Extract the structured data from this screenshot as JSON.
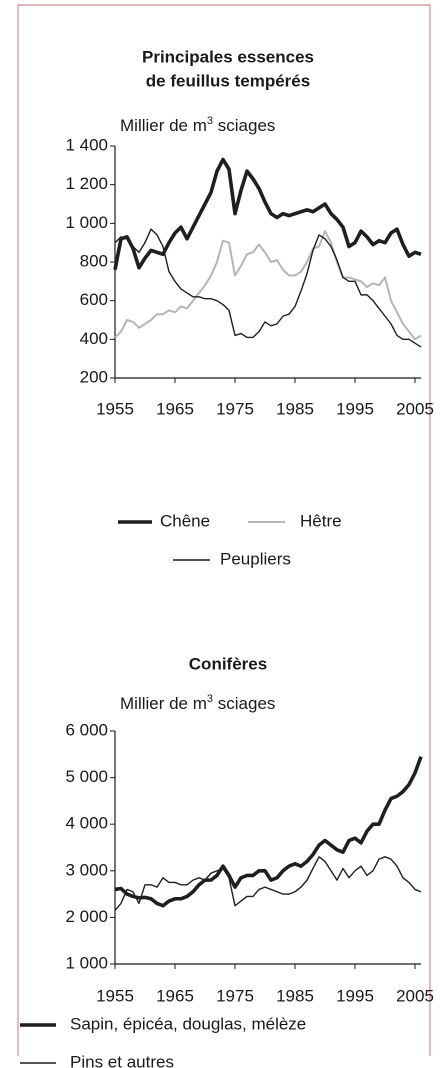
{
  "chart_data": [
    {
      "type": "line",
      "title": [
        "Principales essences",
        "de feuillus tempérés"
      ],
      "y_label": "Millier de m³ sciages",
      "x": [
        1955,
        1956,
        1957,
        1958,
        1959,
        1960,
        1961,
        1962,
        1963,
        1964,
        1965,
        1966,
        1967,
        1968,
        1969,
        1970,
        1971,
        1972,
        1973,
        1974,
        1975,
        1976,
        1977,
        1978,
        1979,
        1980,
        1981,
        1982,
        1983,
        1984,
        1985,
        1986,
        1987,
        1988,
        1989,
        1990,
        1991,
        1992,
        1993,
        1994,
        1995,
        1996,
        1997,
        1998,
        1999,
        2000,
        2001,
        2002,
        2003,
        2004,
        2005,
        2006
      ],
      "xlim": [
        1955,
        2006
      ],
      "xticks": [
        1955,
        1965,
        1975,
        1985,
        1995,
        2005
      ],
      "ylim": [
        200,
        1400
      ],
      "yticks": [
        {
          "value": 1400,
          "label": "1 400"
        },
        {
          "value": 1200,
          "label": "1 200"
        },
        {
          "value": 1000,
          "label": "1 000"
        },
        800,
        600,
        400,
        200
      ],
      "series": [
        {
          "name": "Chêne",
          "color": "#1f1f1f",
          "line_width": 3.6,
          "values": [
            760,
            920,
            930,
            870,
            770,
            820,
            860,
            850,
            840,
            900,
            950,
            980,
            920,
            980,
            1040,
            1100,
            1160,
            1270,
            1330,
            1280,
            1050,
            1170,
            1270,
            1230,
            1180,
            1110,
            1050,
            1030,
            1050,
            1040,
            1050,
            1060,
            1070,
            1060,
            1080,
            1100,
            1050,
            1020,
            980,
            880,
            900,
            960,
            930,
            890,
            910,
            900,
            950,
            970,
            890,
            830,
            850,
            840
          ]
        },
        {
          "name": "Hêtre",
          "color": "#b5b5b5",
          "line_width": 2,
          "values": [
            410,
            440,
            500,
            490,
            460,
            480,
            500,
            530,
            530,
            550,
            540,
            570,
            560,
            600,
            640,
            680,
            730,
            800,
            910,
            900,
            730,
            780,
            840,
            850,
            890,
            850,
            800,
            810,
            760,
            730,
            730,
            750,
            800,
            870,
            880,
            960,
            900,
            800,
            720,
            720,
            710,
            700,
            670,
            690,
            680,
            720,
            600,
            540,
            480,
            440,
            400,
            420
          ]
        },
        {
          "name": "Peupliers",
          "color": "#1f1f1f",
          "line_width": 1.4,
          "values": [
            900,
            930,
            920,
            880,
            850,
            900,
            970,
            940,
            880,
            750,
            700,
            660,
            640,
            620,
            620,
            610,
            610,
            600,
            580,
            550,
            420,
            430,
            410,
            410,
            440,
            490,
            470,
            480,
            520,
            530,
            570,
            650,
            740,
            860,
            940,
            920,
            880,
            810,
            720,
            700,
            700,
            630,
            630,
            600,
            560,
            520,
            480,
            420,
            400,
            400,
            380,
            360
          ]
        }
      ]
    },
    {
      "type": "line",
      "title": [
        "Conifères"
      ],
      "y_label": "Millier de m³ sciages",
      "x": [
        1955,
        1956,
        1957,
        1958,
        1959,
        1960,
        1961,
        1962,
        1963,
        1964,
        1965,
        1966,
        1967,
        1968,
        1969,
        1970,
        1971,
        1972,
        1973,
        1974,
        1975,
        1976,
        1977,
        1978,
        1979,
        1980,
        1981,
        1982,
        1983,
        1984,
        1985,
        1986,
        1987,
        1988,
        1989,
        1990,
        1991,
        1992,
        1993,
        1994,
        1995,
        1996,
        1997,
        1998,
        1999,
        2000,
        2001,
        2002,
        2003,
        2004,
        2005,
        2006
      ],
      "xlim": [
        1955,
        2006
      ],
      "xticks": [
        1955,
        1965,
        1975,
        1985,
        1995,
        2005
      ],
      "ylim": [
        1000,
        6000
      ],
      "yticks": [
        {
          "value": 6000,
          "label": "6 000"
        },
        {
          "value": 5000,
          "label": "5 000"
        },
        {
          "value": 4000,
          "label": "4 000"
        },
        {
          "value": 3000,
          "label": "3 000"
        },
        {
          "value": 2000,
          "label": "2 000"
        },
        {
          "value": 1000,
          "label": "1 000"
        }
      ],
      "series": [
        {
          "name": "Sapin, épicéa, douglas, mélèze",
          "color": "#1f1f1f",
          "line_width": 3.6,
          "values": [
            2600,
            2620,
            2500,
            2450,
            2420,
            2430,
            2400,
            2300,
            2250,
            2350,
            2400,
            2400,
            2450,
            2550,
            2700,
            2800,
            2800,
            2900,
            3100,
            2900,
            2650,
            2850,
            2900,
            2900,
            3000,
            3000,
            2800,
            2850,
            3000,
            3100,
            3150,
            3100,
            3200,
            3350,
            3550,
            3650,
            3550,
            3450,
            3400,
            3650,
            3700,
            3600,
            3850,
            4000,
            4000,
            4300,
            4550,
            4600,
            4700,
            4850,
            5100,
            5450
          ]
        },
        {
          "name": "Pins et autres",
          "color": "#1f1f1f",
          "line_width": 1.4,
          "values": [
            2150,
            2300,
            2600,
            2550,
            2300,
            2700,
            2700,
            2650,
            2850,
            2750,
            2750,
            2700,
            2700,
            2800,
            2850,
            2800,
            2950,
            3000,
            3050,
            2850,
            2250,
            2350,
            2450,
            2450,
            2600,
            2650,
            2600,
            2550,
            2500,
            2500,
            2550,
            2650,
            2800,
            3050,
            3300,
            3200,
            3000,
            2800,
            3050,
            2850,
            3000,
            3100,
            2900,
            3000,
            3250,
            3300,
            3250,
            3100,
            2850,
            2750,
            2600,
            2550
          ]
        }
      ]
    }
  ]
}
